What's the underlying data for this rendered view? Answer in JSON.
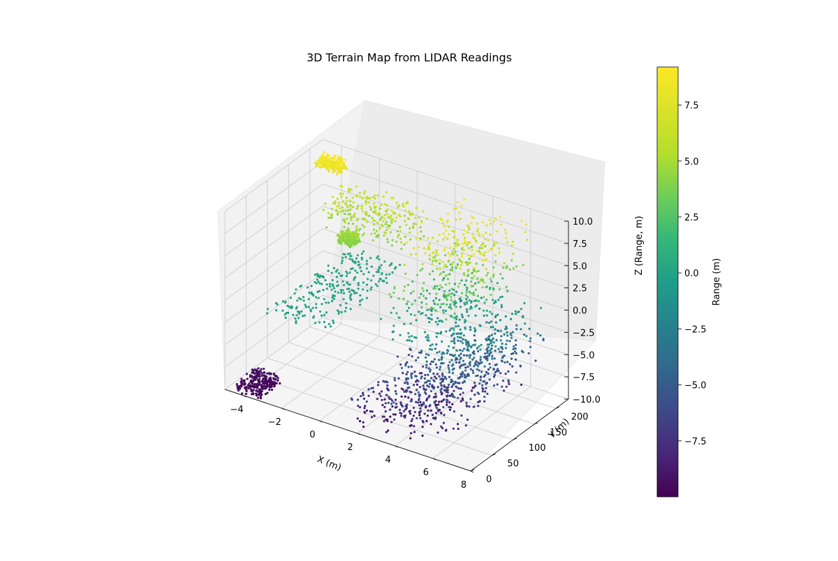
{
  "chart_data": {
    "type": "scatter3d",
    "title": "3D Terrain Map from LIDAR Readings",
    "xlabel": "X (m)",
    "ylabel": "Y (m)",
    "zlabel": "Z (Range, m)",
    "colorbar_label": "Range (m)",
    "colormap": "viridis",
    "x_ticks": [
      "−4",
      "−2",
      "0",
      "2",
      "4",
      "6",
      "8"
    ],
    "y_ticks": [
      "0",
      "50",
      "100",
      "150",
      "200"
    ],
    "z_ticks": [
      "−10.0",
      "−7.5",
      "−5.0",
      "−2.5",
      "0.0",
      "2.5",
      "5.0",
      "7.5",
      "10.0"
    ],
    "colorbar_ticks": [
      "7.5",
      "5.0",
      "2.5",
      "0.0",
      "−2.5",
      "−5.0",
      "−7.5"
    ],
    "xlim": [
      -5,
      8
    ],
    "ylim": [
      0,
      230
    ],
    "zlim": [
      -10,
      10
    ],
    "color_range": [
      -10,
      9.2
    ],
    "grid": true,
    "point_groups": [
      {
        "x": [
          -4.6,
          -3.2
        ],
        "y": [
          3,
          55
        ],
        "z": [
          -10,
          -9
        ]
      },
      {
        "x": [
          1.5,
          4.8
        ],
        "y": [
          2,
          150
        ],
        "z": [
          -9.5,
          -5.5
        ]
      },
      {
        "x": [
          3.0,
          6.5
        ],
        "y": [
          20,
          200
        ],
        "z": [
          -8.5,
          -3
        ]
      },
      {
        "x": [
          4.0,
          7.0
        ],
        "y": [
          60,
          225
        ],
        "z": [
          -6,
          0
        ]
      },
      {
        "x": [
          1.8,
          5.5
        ],
        "y": [
          60,
          215
        ],
        "z": [
          -2,
          4
        ]
      },
      {
        "x": [
          2.2,
          6.0
        ],
        "y": [
          100,
          225
        ],
        "z": [
          3,
          9.2
        ]
      },
      {
        "x": [
          -3.0,
          0.0
        ],
        "y": [
          5,
          205
        ],
        "z": [
          -0.5,
          0.5
        ]
      },
      {
        "x": [
          -3.5,
          1.0
        ],
        "y": [
          150,
          225
        ],
        "z": [
          4,
          7
        ]
      },
      {
        "x": [
          -2.0,
          -1.2
        ],
        "y": [
          130,
          150
        ],
        "z": [
          4,
          5
        ]
      },
      {
        "x": [
          -4.8,
          -3.5
        ],
        "y": [
          200,
          225
        ],
        "z": [
          8,
          9
        ]
      }
    ]
  }
}
